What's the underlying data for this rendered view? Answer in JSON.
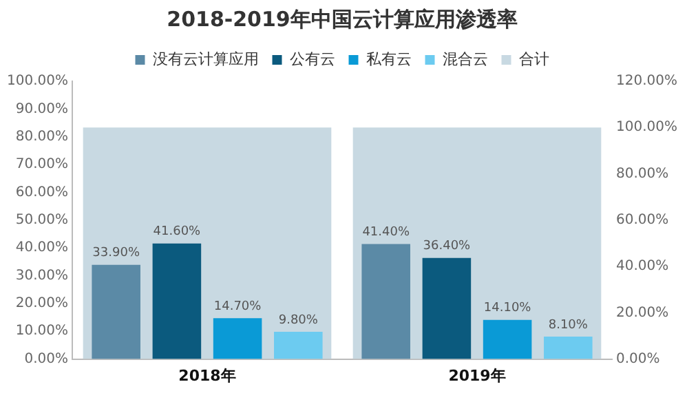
{
  "chart_data": {
    "type": "bar",
    "title": "2018-2019年中国云计算应用渗透率",
    "categories": [
      "2018年",
      "2019年"
    ],
    "series": [
      {
        "name": "没有云计算应用",
        "color": "#5b8aa6",
        "values": [
          33.9,
          41.4
        ],
        "value_labels": [
          "33.90%",
          "41.40%"
        ]
      },
      {
        "name": "公有云",
        "color": "#0b5a7e",
        "values": [
          41.6,
          36.4
        ],
        "value_labels": [
          "41.60%",
          "36.40%"
        ]
      },
      {
        "name": "私有云",
        "color": "#0a9ad6",
        "values": [
          14.7,
          14.1
        ],
        "value_labels": [
          "14.70%",
          "14.10%"
        ]
      },
      {
        "name": "混合云",
        "color": "#6ccbf0",
        "values": [
          9.8,
          8.1
        ],
        "value_labels": [
          "9.80%",
          "8.10%"
        ]
      },
      {
        "name": "合计",
        "color": "#c8d9e2",
        "values": [
          100,
          100
        ],
        "axis": "y2"
      }
    ],
    "ylim": [
      0,
      100
    ],
    "yticks": [
      {
        "value": 0,
        "label": "0.00%"
      },
      {
        "value": 10,
        "label": "10.00%"
      },
      {
        "value": 20,
        "label": "20.00%"
      },
      {
        "value": 30,
        "label": "30.00%"
      },
      {
        "value": 40,
        "label": "40.00%"
      },
      {
        "value": 50,
        "label": "50.00%"
      },
      {
        "value": 60,
        "label": "60.00%"
      },
      {
        "value": 70,
        "label": "70.00%"
      },
      {
        "value": 80,
        "label": "80.00%"
      },
      {
        "value": 90,
        "label": "90.00%"
      },
      {
        "value": 100,
        "label": "100.00%"
      }
    ],
    "y2lim": [
      0,
      120
    ],
    "y2ticks": [
      {
        "value": 0,
        "label": "0.00%"
      },
      {
        "value": 20,
        "label": "20.00%"
      },
      {
        "value": 40,
        "label": "40.00%"
      },
      {
        "value": 60,
        "label": "60.00%"
      },
      {
        "value": 80,
        "label": "80.00%"
      },
      {
        "value": 100,
        "label": "100.00%"
      },
      {
        "value": 120,
        "label": "120.00%"
      }
    ],
    "legend": "top",
    "grid": false
  }
}
